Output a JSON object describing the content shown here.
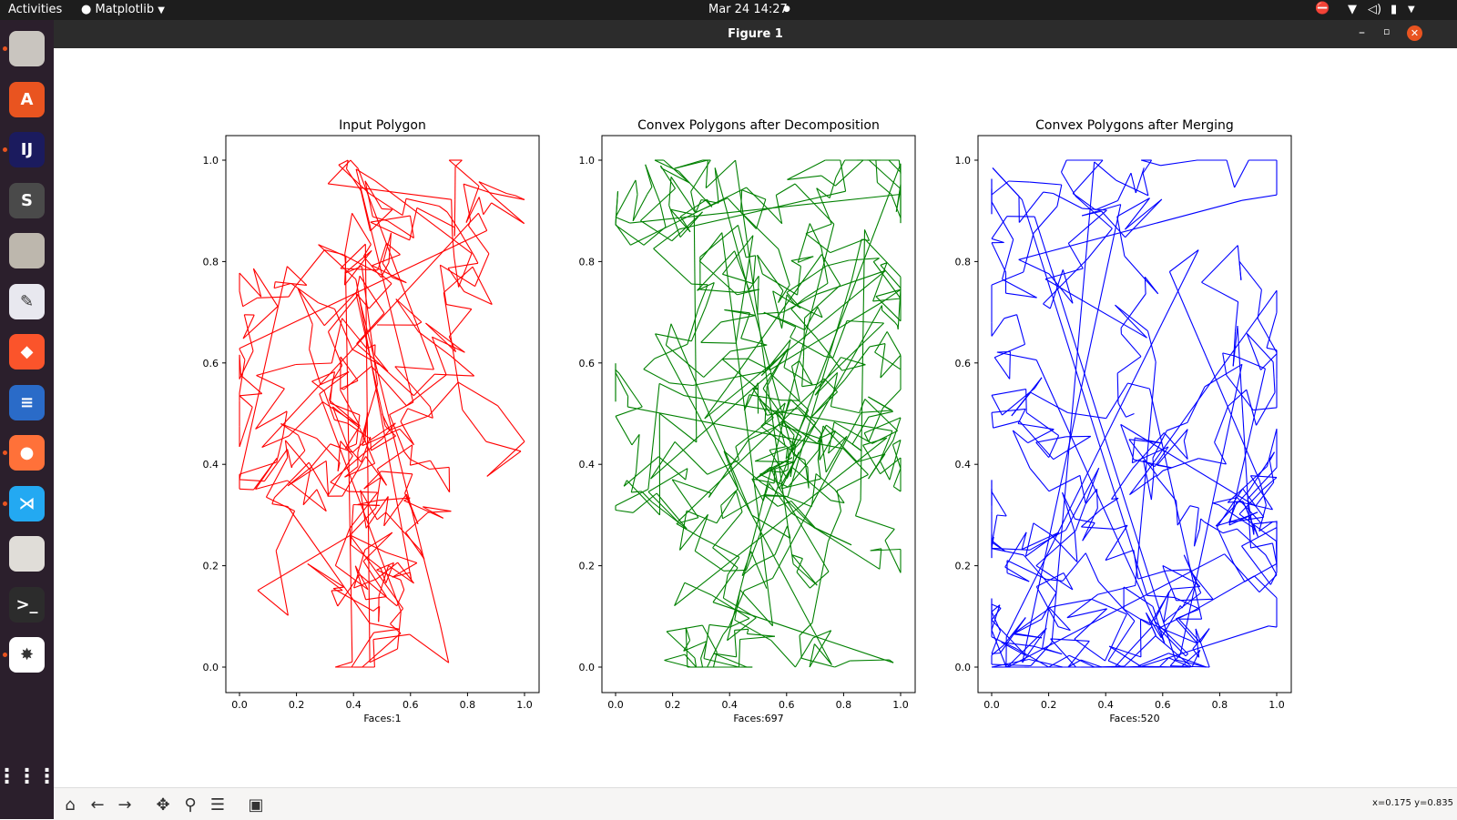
{
  "topbar": {
    "activities": "Activities",
    "app_menu": "Matplotlib",
    "clock": "Mar 24  14:27"
  },
  "window": {
    "title": "Figure 1"
  },
  "figure": {
    "panels": [
      {
        "title": "Input Polygon",
        "xlabel": "Faces:1",
        "color": "#ff0000"
      },
      {
        "title": "Convex Polygons after Decomposition",
        "xlabel": "Faces:697",
        "color": "#008000"
      },
      {
        "title": "Convex Polygons after Merging",
        "xlabel": "Faces:520",
        "color": "#0000ff"
      }
    ]
  },
  "chart_data": [
    {
      "type": "line",
      "title": "Input Polygon",
      "xlabel": "Faces:1",
      "xlim": [
        0.0,
        1.0
      ],
      "ylim": [
        0.0,
        1.0
      ],
      "xticks": [
        "0.0",
        "0.2",
        "0.4",
        "0.6",
        "0.8",
        "1.0"
      ],
      "yticks": [
        "0.0",
        "0.2",
        "0.4",
        "0.6",
        "0.8",
        "1.0"
      ],
      "series": [
        {
          "color": "#ff0000",
          "faces": 1
        }
      ],
      "grid": false
    },
    {
      "type": "line",
      "title": "Convex Polygons after Decomposition",
      "xlabel": "Faces:697",
      "xlim": [
        0.0,
        1.0
      ],
      "ylim": [
        0.0,
        1.0
      ],
      "xticks": [
        "0.0",
        "0.2",
        "0.4",
        "0.6",
        "0.8",
        "1.0"
      ],
      "yticks": [
        "0.0",
        "0.2",
        "0.4",
        "0.6",
        "0.8",
        "1.0"
      ],
      "series": [
        {
          "color": "#008000",
          "faces": 697
        }
      ],
      "grid": false
    },
    {
      "type": "line",
      "title": "Convex Polygons after Merging",
      "xlabel": "Faces:520",
      "xlim": [
        0.0,
        1.0
      ],
      "ylim": [
        0.0,
        1.0
      ],
      "xticks": [
        "0.0",
        "0.2",
        "0.4",
        "0.6",
        "0.8",
        "1.0"
      ],
      "yticks": [
        "0.0",
        "0.2",
        "0.4",
        "0.6",
        "0.8",
        "1.0"
      ],
      "series": [
        {
          "color": "#0000ff",
          "faces": 520
        }
      ],
      "grid": false
    }
  ],
  "dock": {
    "apps": [
      {
        "name": "files",
        "icon": "folder-icon",
        "color": "#c9c5bf",
        "glyph": "",
        "running": true
      },
      {
        "name": "software",
        "icon": "store-icon",
        "color": "#e95420",
        "glyph": "A",
        "running": false
      },
      {
        "name": "intellij",
        "icon": "intellij-icon",
        "color": "#1b1b5e",
        "glyph": "IJ",
        "running": true
      },
      {
        "name": "sublime",
        "icon": "sublime-icon",
        "color": "#4a4a4a",
        "glyph": "S",
        "running": false
      },
      {
        "name": "archive",
        "icon": "archive-icon",
        "color": "#bdb7ad",
        "glyph": "",
        "running": false
      },
      {
        "name": "editor",
        "icon": "text-editor-icon",
        "color": "#e8e8ef",
        "glyph": "✎",
        "running": false
      },
      {
        "name": "brave",
        "icon": "brave-icon",
        "color": "#fb542b",
        "glyph": "◆",
        "running": false
      },
      {
        "name": "writer",
        "icon": "writer-icon",
        "color": "#2a6bc8",
        "glyph": "≡",
        "running": false
      },
      {
        "name": "firefox",
        "icon": "firefox-icon",
        "color": "#ff7139",
        "glyph": "●",
        "running": true
      },
      {
        "name": "vscode",
        "icon": "vscode-icon",
        "color": "#23a9f2",
        "glyph": "⋊",
        "running": true
      },
      {
        "name": "reader",
        "icon": "reader-icon",
        "color": "#e0ddd8",
        "glyph": "",
        "running": false
      },
      {
        "name": "terminal",
        "icon": "terminal-icon",
        "color": "#2c2c2c",
        "glyph": ">_",
        "running": false
      },
      {
        "name": "matplotlib",
        "icon": "matplotlib-icon",
        "color": "#ffffff",
        "glyph": "✸",
        "running": true
      }
    ],
    "show_apps": "app-grid-icon"
  },
  "toolbar": {
    "buttons": [
      "home-icon",
      "back-icon",
      "forward-icon",
      "pan-icon",
      "zoom-icon",
      "configure-icon",
      "save-icon"
    ],
    "coords": "x=0.175 y=0.835"
  }
}
